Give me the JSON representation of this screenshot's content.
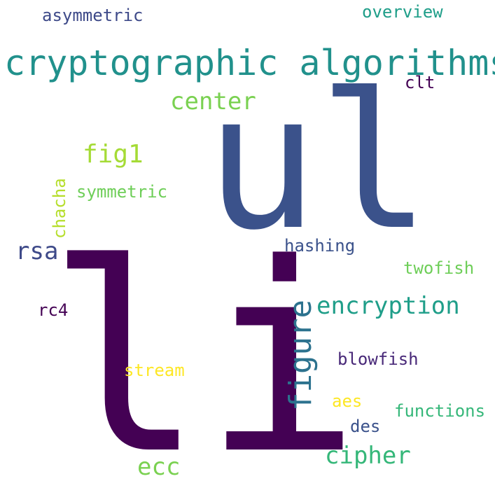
{
  "words": [
    {
      "text": "li",
      "color": "#440154"
    },
    {
      "text": "ul",
      "color": "#3b528b"
    },
    {
      "text": "cryptographic algorithms",
      "color": "#21918c"
    },
    {
      "text": "asymmetric",
      "color": "#3e4a89"
    },
    {
      "text": "overview",
      "color": "#1f9e89"
    },
    {
      "text": "clt",
      "color": "#440154"
    },
    {
      "text": "center",
      "color": "#7ad151"
    },
    {
      "text": "fig1",
      "color": "#a5db36"
    },
    {
      "text": "symmetric",
      "color": "#6ece58"
    },
    {
      "text": "chacha",
      "color": "#b5de2b"
    },
    {
      "text": "rsa",
      "color": "#3e4a89"
    },
    {
      "text": "hashing",
      "color": "#3b528b"
    },
    {
      "text": "twofish",
      "color": "#6ece58"
    },
    {
      "text": "figure",
      "color": "#2c728e"
    },
    {
      "text": "encryption",
      "color": "#1f9e89"
    },
    {
      "text": "rc4",
      "color": "#440154"
    },
    {
      "text": "blowfish",
      "color": "#482878"
    },
    {
      "text": "stream",
      "color": "#fde725"
    },
    {
      "text": "aes",
      "color": "#fde725"
    },
    {
      "text": "functions",
      "color": "#35b779"
    },
    {
      "text": "des",
      "color": "#3b528b"
    },
    {
      "text": "cipher",
      "color": "#35b779"
    },
    {
      "text": "ecc",
      "color": "#7ad151"
    }
  ]
}
